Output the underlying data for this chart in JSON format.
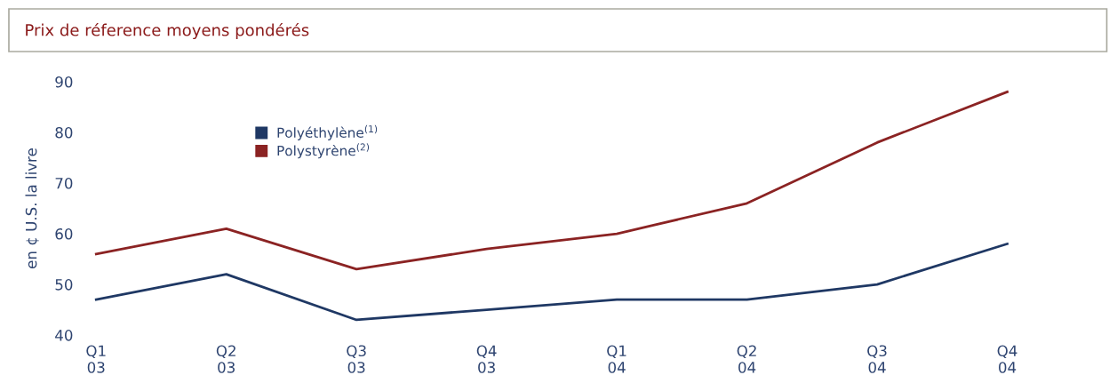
{
  "chart_data": {
    "type": "line",
    "title": "Prix de réference moyens pondérés",
    "ylabel": "en ¢ U.S. la livre",
    "categories": [
      "Q1\n03",
      "Q2\n03",
      "Q3\n03",
      "Q4\n03",
      "Q1\n04",
      "Q2\n04",
      "Q3\n04",
      "Q4\n04"
    ],
    "series": [
      {
        "name": "Polyéthylène$^{(1)}$",
        "color": "#1f3864",
        "values": [
          47,
          52,
          43,
          45,
          47,
          47,
          50,
          58
        ]
      },
      {
        "name": "Polystyrène$^{(2)}$",
        "color": "#8b2323",
        "values": [
          56,
          61,
          53,
          57,
          60,
          66,
          78,
          88
        ]
      }
    ],
    "ylim": [
      40,
      90
    ],
    "yticks": [
      40,
      50,
      60,
      70,
      80,
      90
    ],
    "grid": false,
    "legend": "top left",
    "marker": "none",
    "line_style": "solid"
  }
}
